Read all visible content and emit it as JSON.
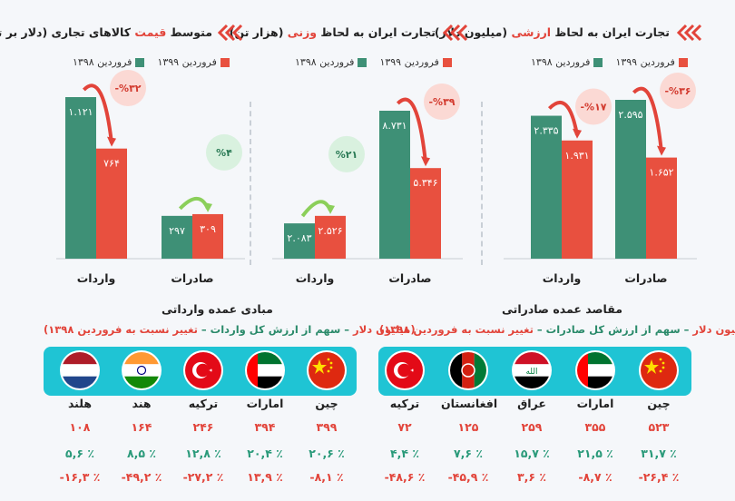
{
  "colors": {
    "y1398": "#3e9076",
    "y1399": "#e8503f",
    "accent": "#e2443a",
    "green": "#2a8a6a",
    "strip": "#1fc4d4"
  },
  "panels": {
    "value": {
      "title_a": "تجارت ایران به لحاظ ",
      "title_hl": "ارزشی",
      "title_b": " (میلیون دلار)"
    },
    "weight": {
      "title_a": "تجارت ایران به لحاظ ",
      "title_hl": "وزنی",
      "title_b": " (هزار تن)"
    },
    "price": {
      "title_a": "متوسط ",
      "title_hl": "قیمت",
      "title_b": " کالاهای تجاری (دلار بر تن)"
    }
  },
  "legend": {
    "y1398": "فروردین ۱۳۹۸",
    "y1399": "فروردین ۱۳۹۹"
  },
  "chart_data": [
    {
      "type": "bar",
      "title": "تجارت ایران به لحاظ ارزشی (میلیون دلار)",
      "categories": [
        "صادرات",
        "واردات"
      ],
      "series": [
        {
          "name": "فروردین ۱۳۹۸",
          "values": [
            2595,
            2335
          ],
          "labels": [
            "۲.۵۹۵",
            "۲.۳۳۵"
          ]
        },
        {
          "name": "فروردین ۱۳۹۹",
          "values": [
            1652,
            1931
          ],
          "labels": [
            "۱.۶۵۲",
            "۱.۹۳۱"
          ]
        }
      ],
      "changes": [
        "-%۳۶",
        "-%۱۷"
      ],
      "change_direction": [
        "down",
        "down"
      ]
    },
    {
      "type": "bar",
      "title": "تجارت ایران به لحاظ وزنی (هزار تن)",
      "categories": [
        "صادرات",
        "واردات"
      ],
      "series": [
        {
          "name": "فروردین ۱۳۹۸",
          "values": [
            8731,
            2083
          ],
          "labels": [
            "۸.۷۳۱",
            "۲.۰۸۳"
          ]
        },
        {
          "name": "فروردین ۱۳۹۹",
          "values": [
            5346,
            2526
          ],
          "labels": [
            "۵.۳۴۶",
            "۲.۵۲۶"
          ]
        }
      ],
      "changes": [
        "-%۳۹",
        "%۲۱"
      ],
      "change_direction": [
        "down",
        "up"
      ]
    },
    {
      "type": "bar",
      "title": "متوسط قیمت کالاهای تجاری (دلار بر تن)",
      "categories": [
        "صادرات",
        "واردات"
      ],
      "series": [
        {
          "name": "فروردین ۱۳۹۸",
          "values": [
            297,
            1121
          ],
          "labels": [
            "۲۹۷",
            "۱.۱۲۱"
          ]
        },
        {
          "name": "فروردین ۱۳۹۹",
          "values": [
            309,
            764
          ],
          "labels": [
            "۳۰۹",
            "۷۶۴"
          ]
        }
      ],
      "changes": [
        "%۴",
        "-%۳۲"
      ],
      "change_direction": [
        "up",
        "down"
      ]
    }
  ],
  "destinations": {
    "title": "مقاصد عمده صادراتی",
    "sub_a": "(میلیون دلار",
    "sub_b": " – سهم از ارزش کل صادرات – ",
    "sub_c": "تغییر نسبت به فروردین ۱۳۹۸)",
    "countries": [
      {
        "name": "چین",
        "flag": "china-flag",
        "value": "۵۲۳",
        "share": "۳۱,۷ ٪",
        "change": "-۲۶,۴ ٪"
      },
      {
        "name": "امارات",
        "flag": "uae-flag",
        "value": "۳۵۵",
        "share": "۲۱,۵ ٪",
        "change": "-۸,۷ ٪"
      },
      {
        "name": "عراق",
        "flag": "iraq-flag",
        "value": "۲۵۹",
        "share": "۱۵,۷ ٪",
        "change": "۳,۶ ٪"
      },
      {
        "name": "افغانستان",
        "flag": "afghanistan-flag",
        "value": "۱۲۵",
        "share": "۷,۶ ٪",
        "change": "-۴۵,۹ ٪"
      },
      {
        "name": "ترکیه",
        "flag": "turkey-flag",
        "value": "۷۲",
        "share": "۴,۴ ٪",
        "change": "-۴۸,۶ ٪"
      }
    ]
  },
  "origins": {
    "title": "مبادی عمده وارداتی",
    "sub_a": "(میلیون دلار",
    "sub_b": " – سهم از ارزش کل واردات – ",
    "sub_c": "تغییر نسبت به فروردین ۱۳۹۸)",
    "countries": [
      {
        "name": "چین",
        "flag": "china-flag",
        "value": "۳۹۹",
        "share": "۲۰,۶ ٪",
        "change": "-۸,۱ ٪"
      },
      {
        "name": "امارات",
        "flag": "uae-flag",
        "value": "۳۹۴",
        "share": "۲۰,۴ ٪",
        "change": "۱۳,۹ ٪"
      },
      {
        "name": "ترکیه",
        "flag": "turkey-flag",
        "value": "۲۴۶",
        "share": "۱۲,۸ ٪",
        "change": "-۲۷,۲ ٪"
      },
      {
        "name": "هند",
        "flag": "india-flag",
        "value": "۱۶۴",
        "share": "۸,۵ ٪",
        "change": "-۴۹,۲ ٪"
      },
      {
        "name": "هلند",
        "flag": "netherlands-flag",
        "value": "۱۰۸",
        "share": "۵,۶ ٪",
        "change": "-۱۶,۳ ٪"
      }
    ]
  }
}
